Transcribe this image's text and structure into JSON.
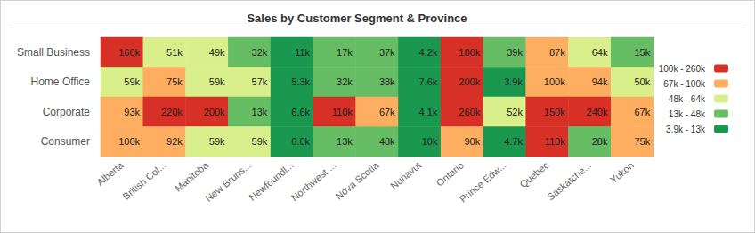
{
  "chart_data": {
    "type": "heatmap",
    "title": "Sales by Customer Segment & Province",
    "categories": [
      "Alberta",
      "British Col...",
      "Manitoba",
      "New Bruns...",
      "Newfoundl...",
      "Northwest ...",
      "Nova Scotia",
      "Nunavut",
      "Ontario",
      "Prince Edw...",
      "Quebec",
      "Saskatche...",
      "Yukon"
    ],
    "series": [
      {
        "name": "Small Business",
        "values": [
          160000,
          51000,
          49000,
          32000,
          11000,
          17000,
          37000,
          4200,
          180000,
          39000,
          87000,
          64000,
          15000
        ],
        "value_labels": [
          "160k",
          "51k",
          "49k",
          "32k",
          "11k",
          "17k",
          "37k",
          "4.2k",
          "180k",
          "39k",
          "87k",
          "64k",
          "15k"
        ]
      },
      {
        "name": "Home Office",
        "values": [
          59000,
          75000,
          59000,
          57000,
          5300,
          32000,
          38000,
          7600,
          200000,
          3900,
          99800,
          94000,
          50000
        ],
        "value_labels": [
          "59k",
          "75k",
          "59k",
          "57k",
          "5.3k",
          "32k",
          "38k",
          "7.6k",
          "200k",
          "3.9k",
          "100k",
          "94k",
          "50k"
        ]
      },
      {
        "name": "Corporate",
        "values": [
          93000,
          220000,
          200000,
          13200,
          6600,
          110000,
          67000,
          4100,
          260000,
          52000,
          150000,
          240000,
          67000
        ],
        "value_labels": [
          "93k",
          "220k",
          "200k",
          "13k",
          "6.6k",
          "110k",
          "67k",
          "4.1k",
          "260k",
          "52k",
          "150k",
          "240k",
          "67k"
        ]
      },
      {
        "name": "Consumer",
        "values": [
          99800,
          92000,
          59000,
          59000,
          6000,
          13200,
          47800,
          10000,
          90000,
          4700,
          110000,
          28000,
          75000
        ],
        "value_labels": [
          "100k",
          "92k",
          "59k",
          "59k",
          "6.0k",
          "13k",
          "48k",
          "10k",
          "90k",
          "4.7k",
          "110k",
          "28k",
          "75k"
        ]
      }
    ],
    "data_labels": true,
    "color_bar": {
      "pieces": [
        {
          "min": 3900,
          "max": 13000,
          "label": "3.9k - 13k",
          "color": "#1a9850"
        },
        {
          "min": 13000,
          "max": 48000,
          "label": "13k - 48k",
          "color": "#66bd63"
        },
        {
          "min": 48000,
          "max": 64000,
          "label": "48k - 64k",
          "color": "#d9ef8b"
        },
        {
          "min": 67000,
          "max": 100000,
          "label": "67k - 100k",
          "color": "#fdae61"
        },
        {
          "min": 100000,
          "max": 260000,
          "label": "100k - 260k",
          "color": "#d73027"
        }
      ]
    }
  }
}
